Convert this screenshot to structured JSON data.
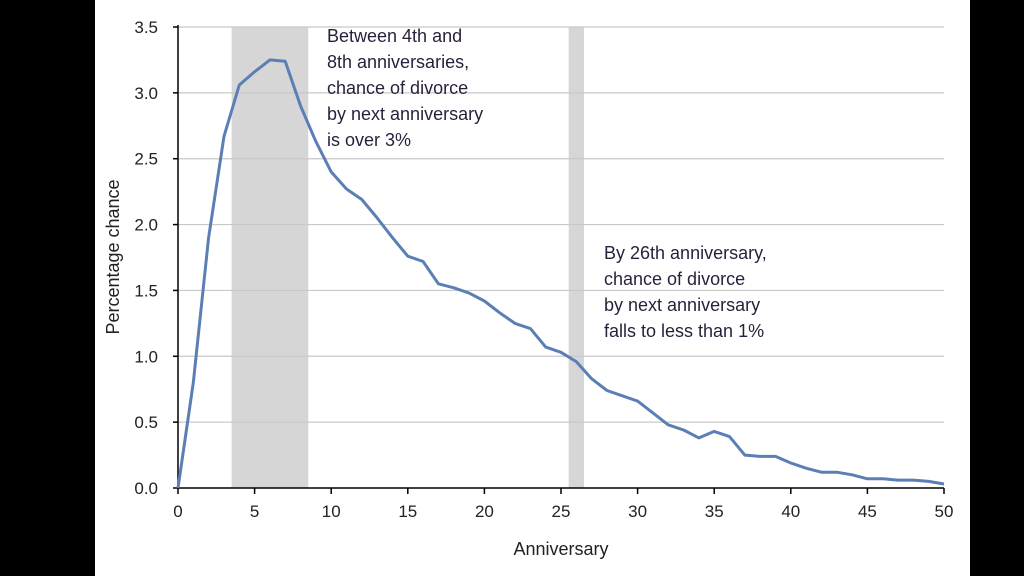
{
  "chart_data": {
    "type": "line",
    "title": "",
    "xlabel": "Anniversary",
    "ylabel": "Percentage chance",
    "xlim": [
      0,
      50
    ],
    "ylim": [
      0,
      3.5
    ],
    "xticks": [
      0,
      5,
      10,
      15,
      20,
      25,
      30,
      35,
      40,
      45,
      50
    ],
    "yticks": [
      "0.0",
      "0.5",
      "1.0",
      "1.5",
      "2.0",
      "2.5",
      "3.0",
      "3.5"
    ],
    "grid": "horizontal",
    "line_color": "#5b7fb5",
    "band_color": "#d6d6d6",
    "shaded_bands": [
      [
        3.5,
        8.5
      ],
      [
        25.5,
        26.5
      ]
    ],
    "x": [
      0,
      1,
      2,
      3,
      4,
      5,
      6,
      7,
      8,
      9,
      10,
      11,
      12,
      13,
      14,
      15,
      16,
      17,
      18,
      19,
      20,
      21,
      22,
      23,
      24,
      25,
      26,
      27,
      28,
      29,
      30,
      31,
      32,
      33,
      34,
      35,
      36,
      37,
      38,
      39,
      40,
      41,
      42,
      43,
      44,
      45,
      46,
      47,
      48,
      49,
      50
    ],
    "values": [
      0,
      0.8,
      1.9,
      2.67,
      3.06,
      3.16,
      3.25,
      3.24,
      2.9,
      2.63,
      2.4,
      2.27,
      2.19,
      2.05,
      1.9,
      1.76,
      1.72,
      1.55,
      1.52,
      1.48,
      1.42,
      1.33,
      1.25,
      1.21,
      1.07,
      1.03,
      0.96,
      0.83,
      0.74,
      0.7,
      0.66,
      0.57,
      0.48,
      0.44,
      0.38,
      0.43,
      0.39,
      0.25,
      0.24,
      0.24,
      0.19,
      0.15,
      0.12,
      0.12,
      0.1,
      0.07,
      0.07,
      0.06,
      0.06,
      0.05,
      0.03
    ],
    "annotations": [
      {
        "lines": [
          "Between 4th and",
          "8th anniversaries,",
          "chance of divorce",
          "by next anniversary",
          "is over 3%"
        ]
      },
      {
        "lines": [
          "By 26th anniversary,",
          "chance of divorce",
          "by next anniversary",
          "falls to less than 1%"
        ]
      }
    ]
  }
}
